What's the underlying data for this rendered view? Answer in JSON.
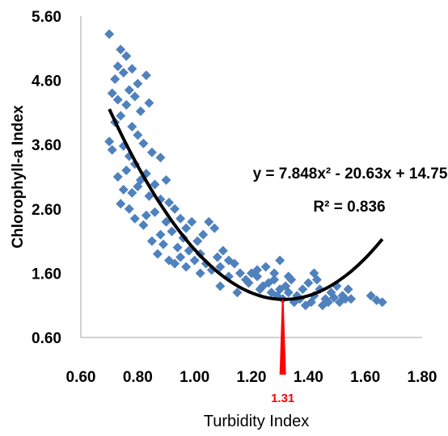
{
  "chart_data": {
    "type": "scatter",
    "xlabel": "Turbidity Index",
    "ylabel": "Chlorophyll-a Index",
    "xlim": [
      0.6,
      1.8
    ],
    "ylim": [
      0.6,
      5.6
    ],
    "xticks": [
      "0.60",
      "0.80",
      "1.00",
      "1.20",
      "1.40",
      "1.60",
      "1.80"
    ],
    "yticks": [
      "0.60",
      "1.60",
      "2.60",
      "3.60",
      "4.60",
      "5.60"
    ],
    "grid": false,
    "marker_color": "#4F81BD",
    "trend_color": "#000000",
    "annotation_color": "#FF0000",
    "equation": "y = 7.848x² - 20.63x + 14.75",
    "r_squared": "R² = 0.836",
    "trendline": {
      "a": 7.848,
      "b": -20.63,
      "c": 14.75,
      "x_range": [
        0.7,
        1.66
      ]
    },
    "vertex_marker": {
      "x": 1.31,
      "label": "1.31"
    },
    "points": [
      [
        0.7,
        5.32
      ],
      [
        0.72,
        4.62
      ],
      [
        0.74,
        5.08
      ],
      [
        0.76,
        4.98
      ],
      [
        0.73,
        4.82
      ],
      [
        0.75,
        4.72
      ],
      [
        0.78,
        4.78
      ],
      [
        0.8,
        4.55
      ],
      [
        0.77,
        4.45
      ],
      [
        0.71,
        4.4
      ],
      [
        0.83,
        4.68
      ],
      [
        0.73,
        4.3
      ],
      [
        0.76,
        4.22
      ],
      [
        0.79,
        4.35
      ],
      [
        0.81,
        4.12
      ],
      [
        0.84,
        4.25
      ],
      [
        0.74,
        4.05
      ],
      [
        0.72,
        3.95
      ],
      [
        0.78,
        3.88
      ],
      [
        0.8,
        3.75
      ],
      [
        0.82,
        3.62
      ],
      [
        0.7,
        3.65
      ],
      [
        0.71,
        3.52
      ],
      [
        0.75,
        3.58
      ],
      [
        0.77,
        3.42
      ],
      [
        0.79,
        3.3
      ],
      [
        0.85,
        3.48
      ],
      [
        0.88,
        3.4
      ],
      [
        0.76,
        3.2
      ],
      [
        0.73,
        3.1
      ],
      [
        0.81,
        3.05
      ],
      [
        0.83,
        3.15
      ],
      [
        0.86,
        2.98
      ],
      [
        0.9,
        3.05
      ],
      [
        0.78,
        2.85
      ],
      [
        0.84,
        2.8
      ],
      [
        0.88,
        2.75
      ],
      [
        0.91,
        2.7
      ],
      [
        0.75,
        2.9
      ],
      [
        0.8,
        2.95
      ],
      [
        0.77,
        2.6
      ],
      [
        0.79,
        2.45
      ],
      [
        0.83,
        2.5
      ],
      [
        0.86,
        2.55
      ],
      [
        0.9,
        2.4
      ],
      [
        0.93,
        2.6
      ],
      [
        0.95,
        2.45
      ],
      [
        0.97,
        2.3
      ],
      [
        0.99,
        2.4
      ],
      [
        0.88,
        2.2
      ],
      [
        0.92,
        2.25
      ],
      [
        0.96,
        2.15
      ],
      [
        0.74,
        2.68
      ],
      [
        0.82,
        2.35
      ],
      [
        0.85,
        2.1
      ],
      [
        0.89,
        2.05
      ],
      [
        0.94,
        2.0
      ],
      [
        0.98,
        1.95
      ],
      [
        1.01,
        2.1
      ],
      [
        1.03,
        2.2
      ],
      [
        1.05,
        2.4
      ],
      [
        1.07,
        2.3
      ],
      [
        1.02,
        1.9
      ],
      [
        0.91,
        1.8
      ],
      [
        0.95,
        1.85
      ],
      [
        1.0,
        1.8
      ],
      [
        1.04,
        1.75
      ],
      [
        1.08,
        1.85
      ],
      [
        1.1,
        1.95
      ],
      [
        1.12,
        1.8
      ],
      [
        1.06,
        1.65
      ],
      [
        1.09,
        1.7
      ],
      [
        1.14,
        1.75
      ],
      [
        1.16,
        1.6
      ],
      [
        1.12,
        1.55
      ],
      [
        0.97,
        1.7
      ],
      [
        1.18,
        1.5
      ],
      [
        1.2,
        1.6
      ],
      [
        1.22,
        1.55
      ],
      [
        1.19,
        1.45
      ],
      [
        1.24,
        1.4
      ],
      [
        1.26,
        1.45
      ],
      [
        1.28,
        1.5
      ],
      [
        1.23,
        1.35
      ],
      [
        1.27,
        1.3
      ],
      [
        1.3,
        1.35
      ],
      [
        1.32,
        1.4
      ],
      [
        1.34,
        1.5
      ],
      [
        1.29,
        1.25
      ],
      [
        1.31,
        1.2
      ],
      [
        1.33,
        1.3
      ],
      [
        1.36,
        1.25
      ],
      [
        1.38,
        1.35
      ],
      [
        1.4,
        1.45
      ],
      [
        1.35,
        1.15
      ],
      [
        1.37,
        1.2
      ],
      [
        1.39,
        1.1
      ],
      [
        1.42,
        1.25
      ],
      [
        1.44,
        1.35
      ],
      [
        1.41,
        1.15
      ],
      [
        1.46,
        1.2
      ],
      [
        1.48,
        1.3
      ],
      [
        1.5,
        1.4
      ],
      [
        1.45,
        1.1
      ],
      [
        1.52,
        1.25
      ],
      [
        1.54,
        1.35
      ],
      [
        1.51,
        1.15
      ],
      [
        1.53,
        1.2
      ],
      [
        1.25,
        1.7
      ],
      [
        1.3,
        1.8
      ],
      [
        1.22,
        1.65
      ],
      [
        1.15,
        1.3
      ],
      [
        1.42,
        1.6
      ],
      [
        1.47,
        1.15
      ],
      [
        1.49,
        1.22
      ],
      [
        1.28,
        1.6
      ],
      [
        1.33,
        1.55
      ],
      [
        1.62,
        1.25
      ],
      [
        1.66,
        1.15
      ],
      [
        1.64,
        1.18
      ],
      [
        1.55,
        1.2
      ],
      [
        1.43,
        1.5
      ],
      [
        1.09,
        1.4
      ],
      [
        1.02,
        1.6
      ],
      [
        0.87,
        1.9
      ],
      [
        0.93,
        1.75
      ]
    ]
  }
}
